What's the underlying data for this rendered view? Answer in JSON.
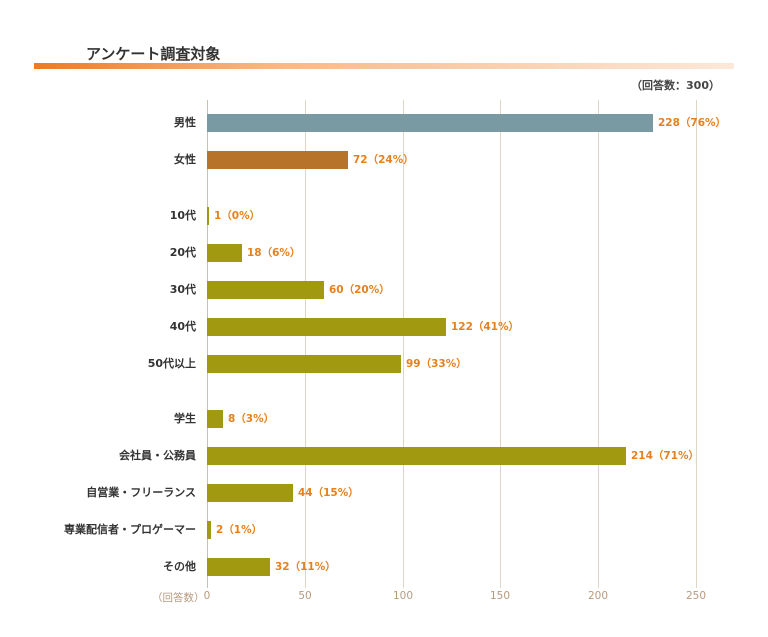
{
  "header": {
    "title": "アンケート調査対象",
    "respondents": "（回答数：300）"
  },
  "chart_data": {
    "type": "bar",
    "orientation": "horizontal",
    "title": "アンケート調査対象",
    "xlabel": "（回答数）",
    "xlim": [
      0,
      250
    ],
    "xticks": [
      "0",
      "50",
      "100",
      "150",
      "200",
      "250"
    ],
    "colors": {
      "male": "#7a9aa3",
      "female": "#b8732a",
      "default": "#a19a10",
      "label": "#e5801f"
    },
    "groups": [
      {
        "name": "gender",
        "items": [
          {
            "label": "男性",
            "value": 228,
            "display": "228（76%）",
            "color": "#7a9aa3"
          },
          {
            "label": "女性",
            "value": 72,
            "display": "72（24%）",
            "color": "#b8732a"
          }
        ]
      },
      {
        "name": "age",
        "items": [
          {
            "label": "10代",
            "value": 1,
            "display": "1（0%）",
            "color": "#a19a10"
          },
          {
            "label": "20代",
            "value": 18,
            "display": "18（6%）",
            "color": "#a19a10"
          },
          {
            "label": "30代",
            "value": 60,
            "display": "60（20%）",
            "color": "#a19a10"
          },
          {
            "label": "40代",
            "value": 122,
            "display": "122（41%）",
            "color": "#a19a10"
          },
          {
            "label": "50代以上",
            "value": 99,
            "display": "99（33%）",
            "color": "#a19a10"
          }
        ]
      },
      {
        "name": "occupation",
        "items": [
          {
            "label": "学生",
            "value": 8,
            "display": "8（3%）",
            "color": "#a19a10"
          },
          {
            "label": "会社員・公務員",
            "value": 214,
            "display": "214（71%）",
            "color": "#a19a10"
          },
          {
            "label": "自営業・フリーランス",
            "value": 44,
            "display": "44（15%）",
            "color": "#a19a10"
          },
          {
            "label": "専業配信者・プロゲーマー",
            "value": 2,
            "display": "2（1%）",
            "color": "#a19a10"
          },
          {
            "label": "その他",
            "value": 32,
            "display": "32（11%）",
            "color": "#a19a10"
          }
        ]
      }
    ]
  }
}
